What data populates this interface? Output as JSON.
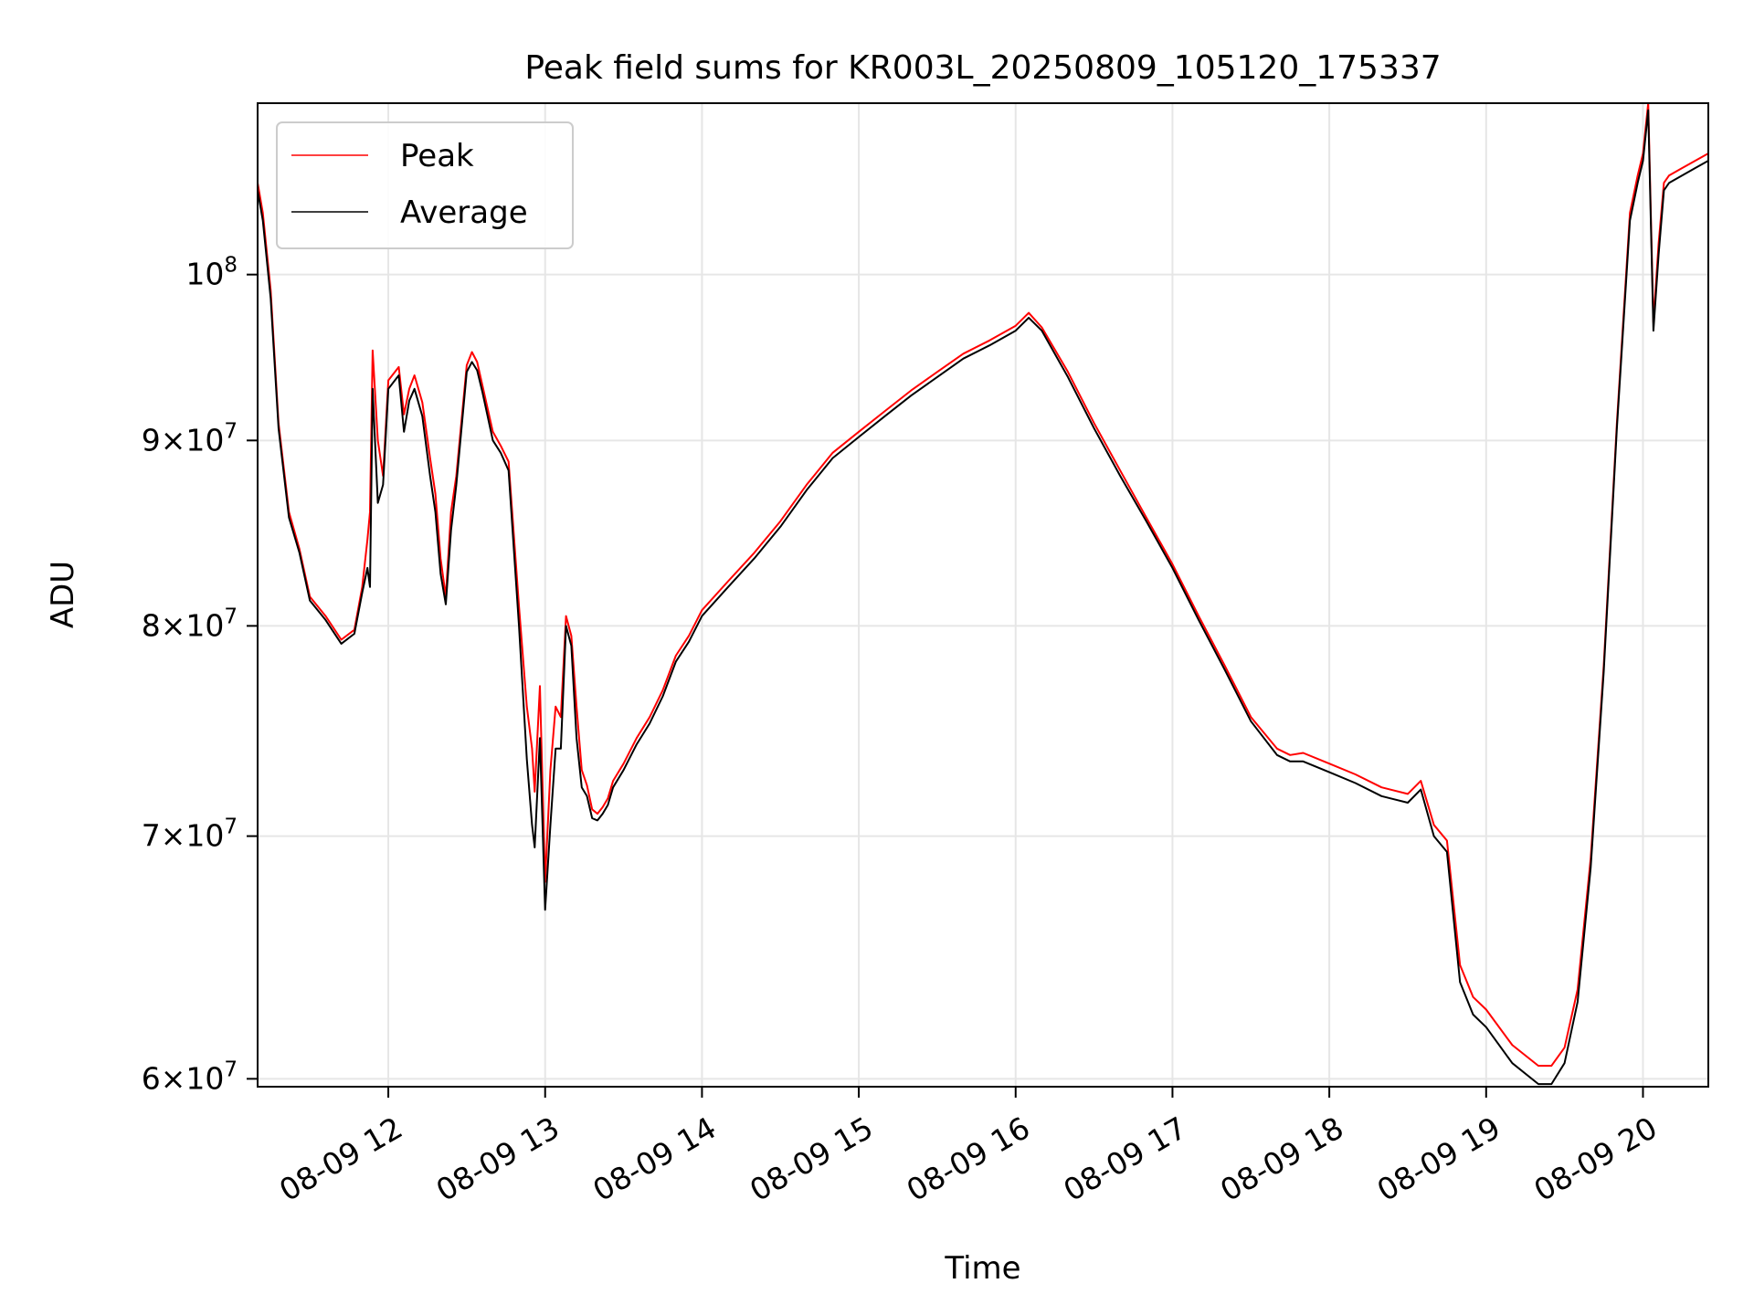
{
  "chart_data": {
    "type": "line",
    "title": "Peak field sums for KR003L_20250809_105120_175337",
    "xlabel": "Time",
    "ylabel": "ADU",
    "yscale": "log",
    "ylim": [
      59700000,
      111500000
    ],
    "xlim": [
      "2025-08-09 11:10",
      "2025-08-09 20:25"
    ],
    "x_ticks": [
      "08-09 12",
      "08-09 13",
      "08-09 14",
      "08-09 15",
      "08-09 16",
      "08-09 17",
      "08-09 18",
      "08-09 19",
      "08-09 20"
    ],
    "y_ticks": [
      {
        "value": 60000000,
        "mantissa": "6",
        "exp": "7"
      },
      {
        "value": 70000000,
        "mantissa": "7",
        "exp": "7"
      },
      {
        "value": 80000000,
        "mantissa": "8",
        "exp": "7"
      },
      {
        "value": 90000000,
        "mantissa": "9",
        "exp": "7"
      },
      {
        "value": 100000000,
        "mantissa": "",
        "exp": "8"
      }
    ],
    "times_multiply": "×",
    "tick_base": "10",
    "grid": true,
    "legend_position": "upper-left",
    "series": [
      {
        "name": "Peak",
        "color": "#ff0000",
        "x": [
          "2025-08-09 11:10",
          "2025-08-09 11:12",
          "2025-08-09 11:15",
          "2025-08-09 11:18",
          "2025-08-09 11:22",
          "2025-08-09 11:26",
          "2025-08-09 11:30",
          "2025-08-09 11:36",
          "2025-08-09 11:42",
          "2025-08-09 11:47",
          "2025-08-09 11:50",
          "2025-08-09 11:52",
          "2025-08-09 11:53",
          "2025-08-09 11:54",
          "2025-08-09 11:56",
          "2025-08-09 11:58",
          "2025-08-09 12:00",
          "2025-08-09 12:04",
          "2025-08-09 12:06",
          "2025-08-09 12:08",
          "2025-08-09 12:10",
          "2025-08-09 12:13",
          "2025-08-09 12:16",
          "2025-08-09 12:18",
          "2025-08-09 12:20",
          "2025-08-09 12:22",
          "2025-08-09 12:24",
          "2025-08-09 12:26",
          "2025-08-09 12:30",
          "2025-08-09 12:32",
          "2025-08-09 12:34",
          "2025-08-09 12:36",
          "2025-08-09 12:40",
          "2025-08-09 12:43",
          "2025-08-09 12:46",
          "2025-08-09 12:50",
          "2025-08-09 12:53",
          "2025-08-09 12:55",
          "2025-08-09 12:56",
          "2025-08-09 12:58",
          "2025-08-09 13:00",
          "2025-08-09 13:02",
          "2025-08-09 13:04",
          "2025-08-09 13:06",
          "2025-08-09 13:08",
          "2025-08-09 13:10",
          "2025-08-09 13:12",
          "2025-08-09 13:14",
          "2025-08-09 13:16",
          "2025-08-09 13:18",
          "2025-08-09 13:20",
          "2025-08-09 13:22",
          "2025-08-09 13:24",
          "2025-08-09 13:26",
          "2025-08-09 13:30",
          "2025-08-09 13:35",
          "2025-08-09 13:40",
          "2025-08-09 13:45",
          "2025-08-09 13:50",
          "2025-08-09 13:55",
          "2025-08-09 14:00",
          "2025-08-09 14:10",
          "2025-08-09 14:20",
          "2025-08-09 14:30",
          "2025-08-09 14:40",
          "2025-08-09 14:50",
          "2025-08-09 15:00",
          "2025-08-09 15:10",
          "2025-08-09 15:20",
          "2025-08-09 15:30",
          "2025-08-09 15:40",
          "2025-08-09 15:50",
          "2025-08-09 16:00",
          "2025-08-09 16:05",
          "2025-08-09 16:10",
          "2025-08-09 16:20",
          "2025-08-09 16:30",
          "2025-08-09 16:40",
          "2025-08-09 16:50",
          "2025-08-09 17:00",
          "2025-08-09 17:10",
          "2025-08-09 17:20",
          "2025-08-09 17:30",
          "2025-08-09 17:40",
          "2025-08-09 17:45",
          "2025-08-09 17:50",
          "2025-08-09 18:00",
          "2025-08-09 18:10",
          "2025-08-09 18:20",
          "2025-08-09 18:30",
          "2025-08-09 18:35",
          "2025-08-09 18:40",
          "2025-08-09 18:45",
          "2025-08-09 18:50",
          "2025-08-09 18:55",
          "2025-08-09 19:00",
          "2025-08-09 19:10",
          "2025-08-09 19:20",
          "2025-08-09 19:25",
          "2025-08-09 19:30",
          "2025-08-09 19:35",
          "2025-08-09 19:40",
          "2025-08-09 19:45",
          "2025-08-09 19:50",
          "2025-08-09 19:55",
          "2025-08-09 19:58",
          "2025-08-09 20:00",
          "2025-08-09 20:02",
          "2025-08-09 20:04",
          "2025-08-09 20:06",
          "2025-08-09 20:08",
          "2025-08-09 20:10",
          "2025-08-09 20:15",
          "2025-08-09 20:20",
          "2025-08-09 20:25"
        ],
        "values": [
          106000000,
          104000000,
          99000000,
          91000000,
          86000000,
          84000000,
          81500000,
          80500000,
          79300000,
          79800000,
          82000000,
          84500000,
          86000000,
          95300000,
          90000000,
          88000000,
          93500000,
          94300000,
          91500000,
          93000000,
          93800000,
          92200000,
          89000000,
          87000000,
          83500000,
          81500000,
          86000000,
          88000000,
          94400000,
          95200000,
          94600000,
          93200000,
          90500000,
          89700000,
          88800000,
          81000000,
          76000000,
          74000000,
          72000000,
          77000000,
          68000000,
          73000000,
          76000000,
          75500000,
          80500000,
          79500000,
          76000000,
          73000000,
          72300000,
          71200000,
          71000000,
          71300000,
          71700000,
          72500000,
          73300000,
          74500000,
          75500000,
          76800000,
          78500000,
          79500000,
          80800000,
          82300000,
          83800000,
          85500000,
          87500000,
          89300000,
          90500000,
          91700000,
          92900000,
          94000000,
          95100000,
          95900000,
          96800000,
          97600000,
          96700000,
          94000000,
          91000000,
          88300000,
          85700000,
          83200000,
          80500000,
          78000000,
          75500000,
          74000000,
          73700000,
          73800000,
          73300000,
          72800000,
          72200000,
          71900000,
          72500000,
          70500000,
          69800000,
          64500000,
          63200000,
          62700000,
          61300000,
          60500000,
          60500000,
          61200000,
          63500000,
          69000000,
          78000000,
          91000000,
          104000000,
          106500000,
          108000000,
          111500000,
          97000000,
          102000000,
          106000000,
          106500000,
          107000000,
          107500000,
          108000000
        ]
      },
      {
        "name": "Average",
        "color": "#000000",
        "x": [
          "2025-08-09 11:10",
          "2025-08-09 11:12",
          "2025-08-09 11:15",
          "2025-08-09 11:18",
          "2025-08-09 11:22",
          "2025-08-09 11:26",
          "2025-08-09 11:30",
          "2025-08-09 11:36",
          "2025-08-09 11:42",
          "2025-08-09 11:47",
          "2025-08-09 11:50",
          "2025-08-09 11:52",
          "2025-08-09 11:53",
          "2025-08-09 11:54",
          "2025-08-09 11:56",
          "2025-08-09 11:58",
          "2025-08-09 12:00",
          "2025-08-09 12:04",
          "2025-08-09 12:06",
          "2025-08-09 12:08",
          "2025-08-09 12:10",
          "2025-08-09 12:13",
          "2025-08-09 12:16",
          "2025-08-09 12:18",
          "2025-08-09 12:20",
          "2025-08-09 12:22",
          "2025-08-09 12:24",
          "2025-08-09 12:26",
          "2025-08-09 12:30",
          "2025-08-09 12:32",
          "2025-08-09 12:34",
          "2025-08-09 12:36",
          "2025-08-09 12:40",
          "2025-08-09 12:43",
          "2025-08-09 12:46",
          "2025-08-09 12:50",
          "2025-08-09 12:53",
          "2025-08-09 12:55",
          "2025-08-09 12:56",
          "2025-08-09 12:58",
          "2025-08-09 13:00",
          "2025-08-09 13:02",
          "2025-08-09 13:04",
          "2025-08-09 13:06",
          "2025-08-09 13:08",
          "2025-08-09 13:10",
          "2025-08-09 13:12",
          "2025-08-09 13:14",
          "2025-08-09 13:16",
          "2025-08-09 13:18",
          "2025-08-09 13:20",
          "2025-08-09 13:22",
          "2025-08-09 13:24",
          "2025-08-09 13:26",
          "2025-08-09 13:30",
          "2025-08-09 13:35",
          "2025-08-09 13:40",
          "2025-08-09 13:45",
          "2025-08-09 13:50",
          "2025-08-09 13:55",
          "2025-08-09 14:00",
          "2025-08-09 14:10",
          "2025-08-09 14:20",
          "2025-08-09 14:30",
          "2025-08-09 14:40",
          "2025-08-09 14:50",
          "2025-08-09 15:00",
          "2025-08-09 15:10",
          "2025-08-09 15:20",
          "2025-08-09 15:30",
          "2025-08-09 15:40",
          "2025-08-09 15:50",
          "2025-08-09 16:00",
          "2025-08-09 16:05",
          "2025-08-09 16:10",
          "2025-08-09 16:20",
          "2025-08-09 16:30",
          "2025-08-09 16:40",
          "2025-08-09 16:50",
          "2025-08-09 17:00",
          "2025-08-09 17:10",
          "2025-08-09 17:20",
          "2025-08-09 17:30",
          "2025-08-09 17:40",
          "2025-08-09 17:45",
          "2025-08-09 17:50",
          "2025-08-09 18:00",
          "2025-08-09 18:10",
          "2025-08-09 18:20",
          "2025-08-09 18:30",
          "2025-08-09 18:35",
          "2025-08-09 18:40",
          "2025-08-09 18:45",
          "2025-08-09 18:50",
          "2025-08-09 18:55",
          "2025-08-09 19:00",
          "2025-08-09 19:10",
          "2025-08-09 19:20",
          "2025-08-09 19:25",
          "2025-08-09 19:30",
          "2025-08-09 19:35",
          "2025-08-09 19:40",
          "2025-08-09 19:45",
          "2025-08-09 19:50",
          "2025-08-09 19:55",
          "2025-08-09 19:58",
          "2025-08-09 20:00",
          "2025-08-09 20:02",
          "2025-08-09 20:04",
          "2025-08-09 20:06",
          "2025-08-09 20:08",
          "2025-08-09 20:10",
          "2025-08-09 20:15",
          "2025-08-09 20:20",
          "2025-08-09 20:25"
        ],
        "values": [
          105500000,
          103500000,
          98500000,
          90700000,
          85700000,
          83800000,
          81300000,
          80300000,
          79100000,
          79600000,
          81700000,
          83000000,
          82000000,
          93000000,
          86500000,
          87500000,
          93000000,
          93800000,
          90500000,
          92300000,
          93000000,
          91400000,
          88000000,
          86000000,
          82700000,
          81100000,
          85000000,
          87500000,
          94000000,
          94600000,
          94100000,
          92800000,
          90000000,
          89300000,
          88300000,
          80000000,
          73500000,
          70500000,
          69500000,
          74500000,
          66800000,
          70500000,
          74000000,
          74000000,
          80000000,
          79000000,
          74500000,
          72200000,
          71800000,
          70800000,
          70700000,
          71000000,
          71400000,
          72200000,
          73000000,
          74200000,
          75200000,
          76500000,
          78200000,
          79200000,
          80500000,
          82000000,
          83500000,
          85200000,
          87200000,
          89000000,
          90200000,
          91400000,
          92600000,
          93700000,
          94800000,
          95600000,
          96500000,
          97300000,
          96500000,
          93700000,
          90700000,
          88000000,
          85500000,
          83000000,
          80300000,
          77800000,
          75300000,
          73700000,
          73400000,
          73400000,
          72900000,
          72400000,
          71800000,
          71500000,
          72100000,
          70000000,
          69300000,
          63800000,
          62500000,
          62000000,
          60600000,
          59800000,
          59800000,
          60600000,
          63000000,
          68600000,
          77700000,
          90700000,
          103500000,
          106000000,
          107500000,
          111000000,
          96500000,
          101300000,
          105500000,
          106000000,
          106500000,
          107000000,
          107500000
        ]
      }
    ]
  }
}
